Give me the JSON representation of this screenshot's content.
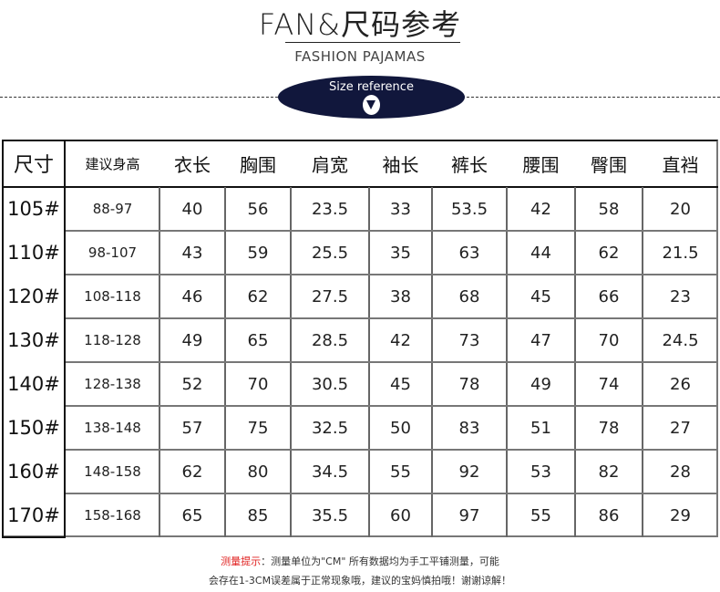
{
  "header": {
    "title": "FAN&尺码参考",
    "subtitle": "FASHION PAJAMAS",
    "badge_text": "Size reference",
    "badge_icon": "down-triangle-icon",
    "badge_color": "#11173c"
  },
  "table": {
    "columns": [
      "尺寸",
      "建议身高",
      "衣长",
      "胸围",
      "肩宽",
      "袖长",
      "裤长",
      "腰围",
      "臀围",
      "直裆"
    ],
    "rows": [
      [
        "105#",
        "88-97",
        "40",
        "56",
        "23.5",
        "33",
        "53.5",
        "42",
        "58",
        "20"
      ],
      [
        "110#",
        "98-107",
        "43",
        "59",
        "25.5",
        "35",
        "63",
        "44",
        "62",
        "21.5"
      ],
      [
        "120#",
        "108-118",
        "46",
        "62",
        "27.5",
        "38",
        "68",
        "45",
        "66",
        "23"
      ],
      [
        "130#",
        "118-128",
        "49",
        "65",
        "28.5",
        "42",
        "73",
        "47",
        "70",
        "24.5"
      ],
      [
        "140#",
        "128-138",
        "52",
        "70",
        "30.5",
        "45",
        "78",
        "49",
        "74",
        "26"
      ],
      [
        "150#",
        "138-148",
        "57",
        "75",
        "32.5",
        "50",
        "83",
        "51",
        "78",
        "27"
      ],
      [
        "160#",
        "148-158",
        "62",
        "80",
        "34.5",
        "55",
        "92",
        "53",
        "82",
        "28"
      ],
      [
        "170#",
        "158-168",
        "65",
        "85",
        "35.5",
        "60",
        "97",
        "55",
        "86",
        "29"
      ]
    ]
  },
  "note": {
    "label": "测量提示",
    "line1": "：测量单位为\"CM\" 所有数据均为手工平铺测量，可能",
    "line2": "会存在1-3CM误差属于正常现象哦，建议的宝妈慎拍哦！谢谢谅解！",
    "label_color": "#e0201f"
  }
}
